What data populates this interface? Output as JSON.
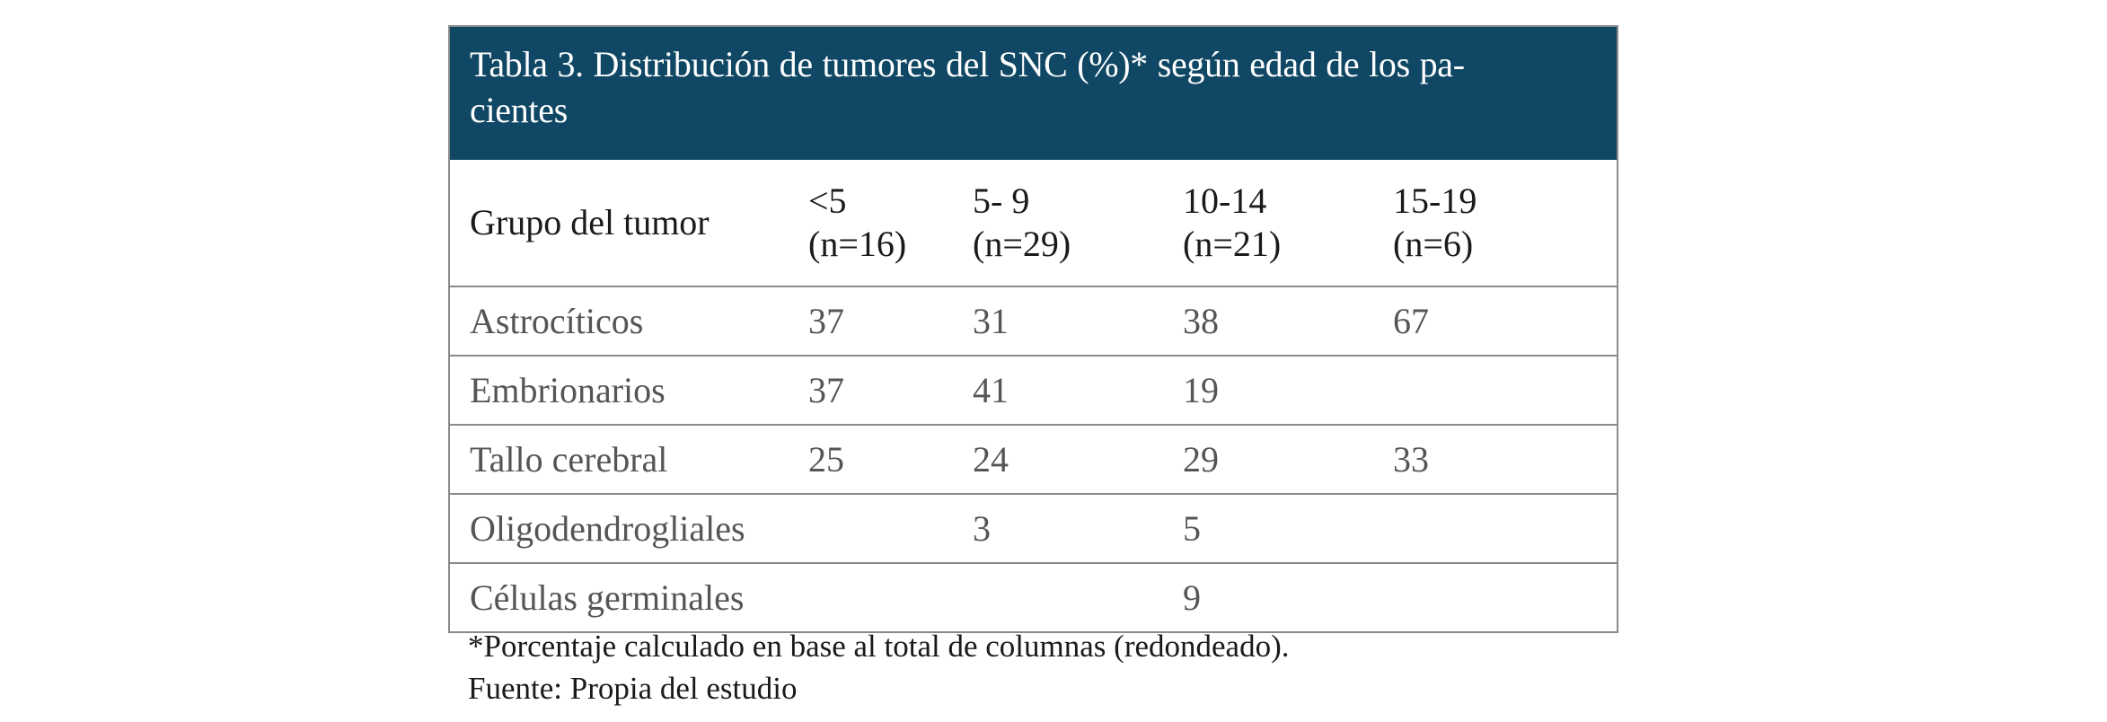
{
  "caption": {
    "line1": "Tabla 3. Distribución de tumores del SNC (%)* según edad de los pa-",
    "line2": "cientes"
  },
  "columns": [
    {
      "name_lines": [
        "Grupo del tumor"
      ]
    },
    {
      "name_lines": [
        "<5",
        "(n=16)"
      ]
    },
    {
      "name_lines": [
        "5- 9",
        "(n=29)"
      ]
    },
    {
      "name_lines": [
        "10-14",
        "(n=21)"
      ]
    },
    {
      "name_lines": [
        "15-19",
        "(n=6)"
      ]
    }
  ],
  "rows": [
    {
      "cells": [
        "Astrocíticos",
        "37",
        "31",
        "38",
        "67"
      ]
    },
    {
      "cells": [
        "Embrionarios",
        "37",
        "41",
        "19",
        ""
      ]
    },
    {
      "cells": [
        "Tallo cerebral",
        "25",
        "24",
        "29",
        "33"
      ]
    },
    {
      "cells": [
        "Oligodendrogliales",
        "",
        "3",
        "5",
        ""
      ]
    },
    {
      "cells": [
        "Células germinales",
        "",
        "",
        "9",
        ""
      ]
    }
  ],
  "footnotes": {
    "note": "*Porcentaje calculado en base al total de columnas (redondeado).",
    "source": "Fuente: Propia del estudio"
  },
  "colors": {
    "caption_background": "#0f4764",
    "caption_text": "#ffffff",
    "border": "#8a8a8a",
    "body_text": "#555555"
  }
}
